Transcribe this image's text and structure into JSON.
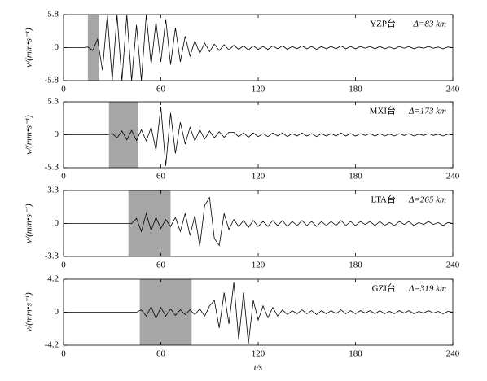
{
  "chart_data": [
    {
      "type": "line",
      "station": "YZP台",
      "distance": "Δ=83 km",
      "ylabel": "v/(mm•s⁻¹)",
      "color": "#000000",
      "shade": [
        15,
        22
      ],
      "shade_color": "#a6a6a6",
      "xlim": [
        0,
        240
      ],
      "xticks": [
        0,
        60,
        120,
        180,
        240
      ],
      "ylim": [
        -5.8,
        5.8
      ],
      "yticks": [
        -5.8,
        0,
        5.8
      ],
      "x": [
        0,
        3,
        6,
        9,
        12,
        15,
        18,
        21,
        24,
        27,
        30,
        33,
        36,
        39,
        42,
        45,
        48,
        51,
        54,
        57,
        60,
        63,
        66,
        69,
        72,
        75,
        78,
        81,
        84,
        87,
        90,
        93,
        96,
        99,
        102,
        105,
        108,
        111,
        114,
        117,
        120,
        123,
        126,
        129,
        132,
        135,
        138,
        141,
        144,
        147,
        150,
        153,
        156,
        159,
        162,
        165,
        168,
        171,
        174,
        177,
        180,
        183,
        186,
        189,
        192,
        195,
        198,
        201,
        204,
        207,
        210,
        213,
        216,
        219,
        222,
        225,
        228,
        231,
        234,
        237,
        240
      ],
      "values": [
        0,
        0,
        0,
        0,
        0,
        0.1,
        -0.5,
        1.5,
        -4,
        5.8,
        -5.8,
        5.8,
        -5.8,
        5.8,
        -5.8,
        4,
        -5.8,
        5.8,
        -3,
        4.5,
        -2.5,
        5,
        -3,
        3.5,
        -2.5,
        2,
        -1.5,
        1.2,
        -1,
        0.8,
        -0.7,
        0.6,
        -0.5,
        0.5,
        -0.4,
        0.4,
        -0.3,
        0.3,
        -0.4,
        0.3,
        -0.3,
        0.2,
        -0.3,
        0.3,
        -0.2,
        0.3,
        -0.3,
        0.2,
        -0.2,
        0.3,
        -0.2,
        0.2,
        -0.3,
        0.2,
        -0.2,
        0.2,
        -0.2,
        0.3,
        -0.2,
        0.2,
        -0.2,
        0.2,
        -0.1,
        0.2,
        -0.2,
        0.2,
        -0.2,
        0.1,
        -0.2,
        0.2,
        -0.1,
        0.2,
        -0.2,
        0.1,
        -0.1,
        0.2,
        -0.1,
        0.1,
        -0.2,
        0.1,
        0
      ]
    },
    {
      "type": "line",
      "station": "MXI台",
      "distance": "Δ=173 km",
      "ylabel": "v/(mm•s⁻¹)",
      "color": "#000000",
      "shade": [
        28,
        46
      ],
      "shade_color": "#a6a6a6",
      "xlim": [
        0,
        240
      ],
      "xticks": [
        0,
        60,
        120,
        180,
        240
      ],
      "ylim": [
        -5.3,
        5.3
      ],
      "yticks": [
        -5.3,
        0,
        5.3
      ],
      "x": [
        0,
        3,
        6,
        9,
        12,
        15,
        18,
        21,
        24,
        27,
        30,
        33,
        36,
        39,
        42,
        45,
        48,
        51,
        54,
        57,
        60,
        63,
        66,
        69,
        72,
        75,
        78,
        81,
        84,
        87,
        90,
        93,
        96,
        99,
        102,
        105,
        108,
        111,
        114,
        117,
        120,
        123,
        126,
        129,
        132,
        135,
        138,
        141,
        144,
        147,
        150,
        153,
        156,
        159,
        162,
        165,
        168,
        171,
        174,
        177,
        180,
        183,
        186,
        189,
        192,
        195,
        198,
        201,
        204,
        207,
        210,
        213,
        216,
        219,
        222,
        225,
        228,
        231,
        234,
        237,
        240
      ],
      "values": [
        0,
        0,
        0,
        0,
        0,
        0,
        0,
        0,
        0,
        0,
        0.2,
        -0.5,
        0.6,
        -0.8,
        0.7,
        -0.9,
        0.8,
        -1,
        1.2,
        -2.5,
        4.5,
        -5,
        3.5,
        -3,
        2,
        -1.5,
        1.2,
        -1,
        0.8,
        -0.7,
        0.6,
        -0.5,
        0.5,
        -0.4,
        0.4,
        0.4,
        -0.3,
        0.3,
        -0.4,
        0.3,
        -0.3,
        0.2,
        -0.3,
        0.3,
        -0.2,
        0.3,
        -0.3,
        0.2,
        -0.2,
        0.3,
        -0.2,
        0.2,
        -0.3,
        0.2,
        -0.2,
        0.2,
        -0.2,
        0.3,
        -0.2,
        0.2,
        -0.2,
        0.2,
        -0.1,
        0.2,
        -0.2,
        0.2,
        -0.2,
        0.1,
        -0.2,
        0.2,
        -0.1,
        0.2,
        -0.2,
        0.1,
        -0.1,
        0.2,
        -0.1,
        0.1,
        -0.2,
        0.1,
        0
      ]
    },
    {
      "type": "line",
      "station": "LTA台",
      "distance": "Δ=265 km",
      "ylabel": "v/(mm•s⁻¹)",
      "color": "#000000",
      "shade": [
        40,
        66
      ],
      "shade_color": "#a6a6a6",
      "xlim": [
        0,
        240
      ],
      "xticks": [
        0,
        60,
        120,
        180,
        240
      ],
      "ylim": [
        -3.3,
        3.3
      ],
      "yticks": [
        -3.3,
        0,
        3.3
      ],
      "x": [
        0,
        3,
        6,
        9,
        12,
        15,
        18,
        21,
        24,
        27,
        30,
        33,
        36,
        39,
        42,
        45,
        48,
        51,
        54,
        57,
        60,
        63,
        66,
        69,
        72,
        75,
        78,
        81,
        84,
        87,
        90,
        93,
        96,
        99,
        102,
        105,
        108,
        111,
        114,
        117,
        120,
        123,
        126,
        129,
        132,
        135,
        138,
        141,
        144,
        147,
        150,
        153,
        156,
        159,
        162,
        165,
        168,
        171,
        174,
        177,
        180,
        183,
        186,
        189,
        192,
        195,
        198,
        201,
        204,
        207,
        210,
        213,
        216,
        219,
        222,
        225,
        228,
        231,
        234,
        237,
        240
      ],
      "values": [
        0,
        0,
        0,
        0,
        0,
        0,
        0,
        0,
        0,
        0,
        0,
        0,
        0,
        0,
        0,
        0.5,
        -0.8,
        1,
        -0.7,
        0.6,
        -0.5,
        0.4,
        -0.3,
        0.6,
        -0.8,
        1,
        -1.2,
        0.8,
        -2.3,
        1.8,
        2.6,
        -1.5,
        -2.2,
        1,
        -0.6,
        0.4,
        -0.3,
        0.3,
        -0.4,
        0.3,
        -0.3,
        0.2,
        -0.3,
        0.3,
        -0.2,
        0.3,
        -0.3,
        0.2,
        -0.2,
        0.3,
        -0.2,
        0.2,
        -0.3,
        0.2,
        -0.2,
        0.2,
        -0.2,
        0.3,
        -0.2,
        0.2,
        -0.2,
        0.2,
        -0.1,
        0.2,
        -0.2,
        0.2,
        -0.2,
        0.1,
        -0.2,
        0.2,
        -0.1,
        0.2,
        -0.2,
        0.1,
        -0.1,
        0.2,
        -0.1,
        0.1,
        -0.2,
        0.1,
        0
      ]
    },
    {
      "type": "line",
      "station": "GZI台",
      "distance": "Δ=319 km",
      "ylabel": "v/(mm•s⁻¹)",
      "xlabel": "t/s",
      "color": "#000000",
      "shade": [
        47,
        79
      ],
      "shade_color": "#a6a6a6",
      "xlim": [
        0,
        240
      ],
      "xticks": [
        0,
        60,
        120,
        180,
        240
      ],
      "ylim": [
        -4.2,
        4.2
      ],
      "yticks": [
        -4.2,
        0,
        4.2
      ],
      "x": [
        0,
        3,
        6,
        9,
        12,
        15,
        18,
        21,
        24,
        27,
        30,
        33,
        36,
        39,
        42,
        45,
        48,
        51,
        54,
        57,
        60,
        63,
        66,
        69,
        72,
        75,
        78,
        81,
        84,
        87,
        90,
        93,
        96,
        99,
        102,
        105,
        108,
        111,
        114,
        117,
        120,
        123,
        126,
        129,
        132,
        135,
        138,
        141,
        144,
        147,
        150,
        153,
        156,
        159,
        162,
        165,
        168,
        171,
        174,
        177,
        180,
        183,
        186,
        189,
        192,
        195,
        198,
        201,
        204,
        207,
        210,
        213,
        216,
        219,
        222,
        225,
        228,
        231,
        234,
        237,
        240
      ],
      "values": [
        0,
        0,
        0,
        0,
        0,
        0,
        0,
        0,
        0,
        0,
        0,
        0,
        0,
        0,
        0,
        0,
        0.3,
        -0.5,
        0.7,
        -0.8,
        0.6,
        -0.5,
        0.4,
        -0.4,
        0.3,
        -0.3,
        0.3,
        -0.3,
        0.4,
        -0.5,
        0.8,
        1.5,
        -2,
        2.5,
        -1.5,
        3.8,
        -3.5,
        2.5,
        -4,
        1.5,
        -1,
        0.8,
        -0.7,
        0.6,
        -0.5,
        0.3,
        -0.3,
        0.2,
        -0.2,
        0.3,
        -0.2,
        0.2,
        -0.3,
        0.2,
        -0.2,
        0.2,
        -0.2,
        0.3,
        -0.2,
        0.2,
        -0.2,
        0.2,
        -0.1,
        0.2,
        -0.2,
        0.2,
        -0.2,
        0.1,
        -0.2,
        0.2,
        -0.1,
        0.2,
        -0.2,
        0.1,
        -0.1,
        0.2,
        -0.1,
        0.1,
        -0.2,
        0.1,
        0
      ]
    }
  ]
}
